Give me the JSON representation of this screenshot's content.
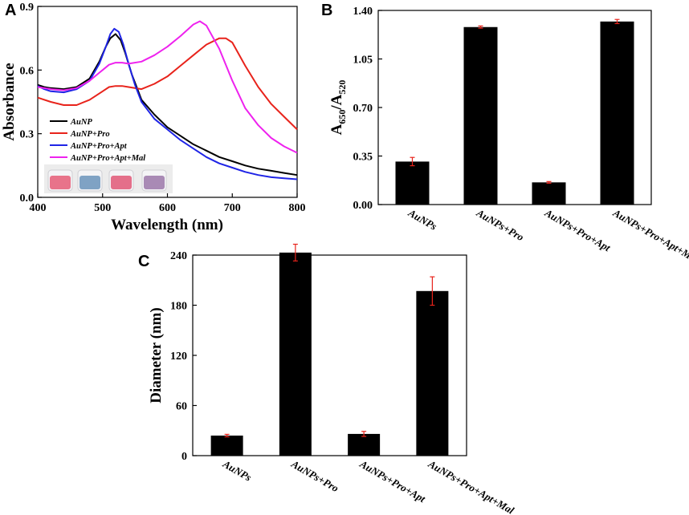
{
  "chart_data": [
    {
      "panel": "A",
      "type": "line",
      "xlabel": "Wavelength (nm)",
      "ylabel": "Absorbance",
      "xlim": [
        400,
        800
      ],
      "ylim": [
        0.0,
        0.9
      ],
      "xticks": [
        "400",
        "500",
        "600",
        "700",
        "800"
      ],
      "yticks": [
        "0.0",
        "0.3",
        "0.6",
        "0.9"
      ],
      "legend_position": "middle-left",
      "inset": "four vials: pink, blue, pink, purple",
      "series": [
        {
          "name": "AuNP",
          "color": "#000000",
          "x": [
            400,
            410,
            420,
            440,
            460,
            480,
            495,
            505,
            512,
            520,
            528,
            535,
            545,
            560,
            580,
            600,
            620,
            640,
            660,
            680,
            700,
            720,
            740,
            760,
            780,
            800
          ],
          "y": [
            0.53,
            0.52,
            0.515,
            0.51,
            0.52,
            0.56,
            0.64,
            0.71,
            0.75,
            0.77,
            0.74,
            0.68,
            0.58,
            0.46,
            0.39,
            0.33,
            0.29,
            0.25,
            0.22,
            0.19,
            0.17,
            0.15,
            0.135,
            0.125,
            0.115,
            0.105
          ]
        },
        {
          "name": "AuNP+Pro",
          "color": "#e8231b",
          "x": [
            400,
            420,
            440,
            460,
            480,
            500,
            510,
            520,
            530,
            540,
            560,
            580,
            600,
            620,
            640,
            660,
            680,
            690,
            700,
            720,
            740,
            760,
            780,
            800
          ],
          "y": [
            0.47,
            0.45,
            0.435,
            0.435,
            0.46,
            0.5,
            0.52,
            0.525,
            0.525,
            0.52,
            0.51,
            0.535,
            0.57,
            0.62,
            0.67,
            0.72,
            0.75,
            0.75,
            0.73,
            0.62,
            0.52,
            0.44,
            0.38,
            0.32
          ]
        },
        {
          "name": "AuNP+Pro+Apt",
          "color": "#1f24e6",
          "x": [
            400,
            410,
            420,
            440,
            460,
            480,
            495,
            505,
            512,
            518,
            525,
            532,
            540,
            550,
            560,
            580,
            600,
            620,
            640,
            660,
            680,
            700,
            720,
            740,
            760,
            780,
            800
          ],
          "y": [
            0.525,
            0.51,
            0.5,
            0.495,
            0.51,
            0.55,
            0.63,
            0.71,
            0.77,
            0.795,
            0.78,
            0.72,
            0.63,
            0.53,
            0.45,
            0.37,
            0.32,
            0.27,
            0.23,
            0.19,
            0.16,
            0.14,
            0.12,
            0.105,
            0.095,
            0.09,
            0.085
          ]
        },
        {
          "name": "AuNP+Pro+Apt+Mal",
          "color": "#ee22ee",
          "x": [
            400,
            420,
            440,
            460,
            480,
            500,
            510,
            520,
            530,
            540,
            560,
            580,
            600,
            620,
            640,
            650,
            660,
            680,
            700,
            720,
            740,
            760,
            780,
            800
          ],
          "y": [
            0.52,
            0.51,
            0.505,
            0.515,
            0.55,
            0.6,
            0.625,
            0.635,
            0.635,
            0.63,
            0.64,
            0.67,
            0.71,
            0.76,
            0.815,
            0.83,
            0.81,
            0.7,
            0.55,
            0.42,
            0.34,
            0.28,
            0.24,
            0.21
          ]
        }
      ]
    },
    {
      "panel": "B",
      "type": "bar",
      "ylabel_main": "A",
      "ylabel_sub1": "650",
      "ylabel_mid": "/A",
      "ylabel_sub2": "520",
      "ylim": [
        0.0,
        1.4
      ],
      "yticks": [
        "0.00",
        "0.35",
        "0.70",
        "1.05",
        "1.40"
      ],
      "categories": [
        "AuNPs",
        "AuNPs+Pro",
        "AuNPs+Pro+Apt",
        "AuNPs+Pro+Apt+Mal"
      ],
      "values": [
        0.31,
        1.28,
        0.16,
        1.32
      ],
      "errors": [
        0.03,
        0.008,
        0.006,
        0.015
      ],
      "bar_color": "#000000",
      "error_color": "#e8231b"
    },
    {
      "panel": "C",
      "type": "bar",
      "ylabel": "Diameter (nm)",
      "ylim": [
        0,
        240
      ],
      "yticks": [
        "0",
        "60",
        "120",
        "180",
        "240"
      ],
      "categories": [
        "AuNPs",
        "AuNPs+Pro",
        "AuNPs+Pro+Apt",
        "AuNPs+Pro+Apt+Mal"
      ],
      "values": [
        24,
        243,
        26,
        197
      ],
      "errors": [
        1.5,
        10,
        3,
        17
      ],
      "bar_color": "#000000",
      "error_color": "#e8231b"
    }
  ],
  "panel_labels": {
    "a": "A",
    "b": "B",
    "c": "C"
  },
  "vial_colors": [
    "#e8738a",
    "#7fa2c4",
    "#e46f8a",
    "#a98ab5"
  ]
}
